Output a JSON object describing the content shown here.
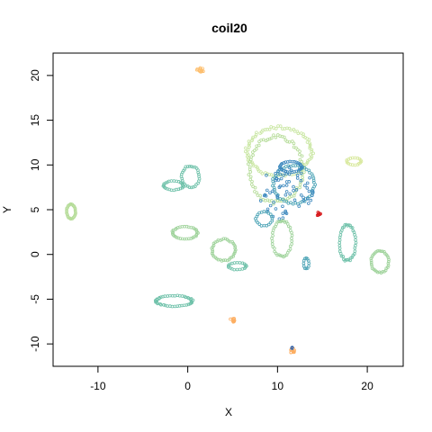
{
  "chart_data": {
    "type": "scatter",
    "title": "coil20",
    "xlabel": "X",
    "ylabel": "Y",
    "xlim": [
      -15,
      24
    ],
    "ylim": [
      -12.5,
      22.5
    ],
    "xticks": [
      -10,
      0,
      10,
      20
    ],
    "yticks": [
      -10,
      -5,
      0,
      5,
      10,
      15,
      20
    ],
    "grid": false,
    "legend": "none",
    "colors": {
      "light_green": "#b5dc98",
      "pale_green": "#c8e6a0",
      "green": "#9fd39b",
      "teal": "#6cc0a8",
      "teal_blue": "#4aa3b5",
      "blue": "#3a87bd",
      "dark_blue": "#3060a8",
      "yellow_green": "#d7e89a",
      "orange": "#fdae61",
      "light_orange": "#fdbf6f",
      "red": "#d7191c"
    },
    "clusters": [
      {
        "color": "pale_green",
        "shape": "loop",
        "center": [
          10.2,
          11.5
        ],
        "r": [
          3.6,
          2.7
        ],
        "n": 90
      },
      {
        "color": "light_green",
        "shape": "loop",
        "center": [
          9.8,
          9.5
        ],
        "r": [
          3.0,
          3.7
        ],
        "n": 80
      },
      {
        "color": "teal_blue",
        "shape": "loop",
        "center": [
          11.8,
          7.8
        ],
        "r": [
          2.3,
          2.1
        ],
        "n": 55
      },
      {
        "color": "blue",
        "shape": "scatter",
        "center": [
          11.0,
          7.0
        ],
        "r": [
          3.2,
          3.2
        ],
        "n": 70
      },
      {
        "color": "blue",
        "shape": "loop",
        "center": [
          11.5,
          9.8
        ],
        "r": [
          1.2,
          0.6
        ],
        "n": 30
      },
      {
        "color": "green",
        "shape": "loop",
        "center": [
          10.5,
          1.8
        ],
        "r": [
          1.1,
          2.0
        ],
        "n": 40
      },
      {
        "color": "teal_blue",
        "shape": "loop",
        "center": [
          8.5,
          4.0
        ],
        "r": [
          0.9,
          0.8
        ],
        "n": 20
      },
      {
        "color": "teal",
        "shape": "loop",
        "center": [
          0.3,
          8.7
        ],
        "r": [
          1.0,
          1.2
        ],
        "n": 30
      },
      {
        "color": "teal",
        "shape": "loop",
        "center": [
          -1.6,
          7.7
        ],
        "r": [
          1.1,
          0.5
        ],
        "n": 25
      },
      {
        "color": "green",
        "shape": "loop",
        "center": [
          -0.3,
          2.4
        ],
        "r": [
          1.4,
          0.7
        ],
        "n": 35
      },
      {
        "color": "light_green",
        "shape": "loop",
        "center": [
          -13.0,
          4.8
        ],
        "r": [
          0.5,
          0.8
        ],
        "n": 30
      },
      {
        "color": "green",
        "shape": "loop",
        "center": [
          4.0,
          0.5
        ],
        "r": [
          1.3,
          1.2
        ],
        "n": 40
      },
      {
        "color": "teal",
        "shape": "loop",
        "center": [
          5.5,
          -1.3
        ],
        "r": [
          1.0,
          0.4
        ],
        "n": 20
      },
      {
        "color": "teal",
        "shape": "loop",
        "center": [
          -1.5,
          -5.2
        ],
        "r": [
          2.0,
          0.6
        ],
        "n": 45
      },
      {
        "color": "teal",
        "shape": "loop",
        "center": [
          17.8,
          1.3
        ],
        "r": [
          0.9,
          2.0
        ],
        "n": 40
      },
      {
        "color": "green",
        "shape": "loop",
        "center": [
          21.4,
          -0.8
        ],
        "r": [
          1.0,
          1.2
        ],
        "n": 35
      },
      {
        "color": "yellow_green",
        "shape": "loop",
        "center": [
          18.5,
          10.4
        ],
        "r": [
          0.8,
          0.4
        ],
        "n": 18
      },
      {
        "color": "teal_blue",
        "shape": "loop",
        "center": [
          13.2,
          -1.0
        ],
        "r": [
          0.3,
          0.6
        ],
        "n": 12
      },
      {
        "color": "light_orange",
        "shape": "blob",
        "center": [
          1.4,
          20.6
        ],
        "r": [
          0.4,
          0.3
        ],
        "n": 14
      },
      {
        "color": "orange",
        "shape": "blob",
        "center": [
          5.0,
          -7.2
        ],
        "r": [
          0.25,
          0.5
        ],
        "n": 10
      },
      {
        "color": "red",
        "shape": "blob",
        "center": [
          14.6,
          4.5
        ],
        "r": [
          0.2,
          0.3
        ],
        "n": 8
      },
      {
        "color": "orange",
        "shape": "blob",
        "center": [
          11.7,
          -10.8
        ],
        "r": [
          0.25,
          0.3
        ],
        "n": 10
      },
      {
        "color": "dark_blue",
        "shape": "blob",
        "center": [
          11.6,
          -10.4
        ],
        "r": [
          0.1,
          0.1
        ],
        "n": 3
      }
    ]
  }
}
